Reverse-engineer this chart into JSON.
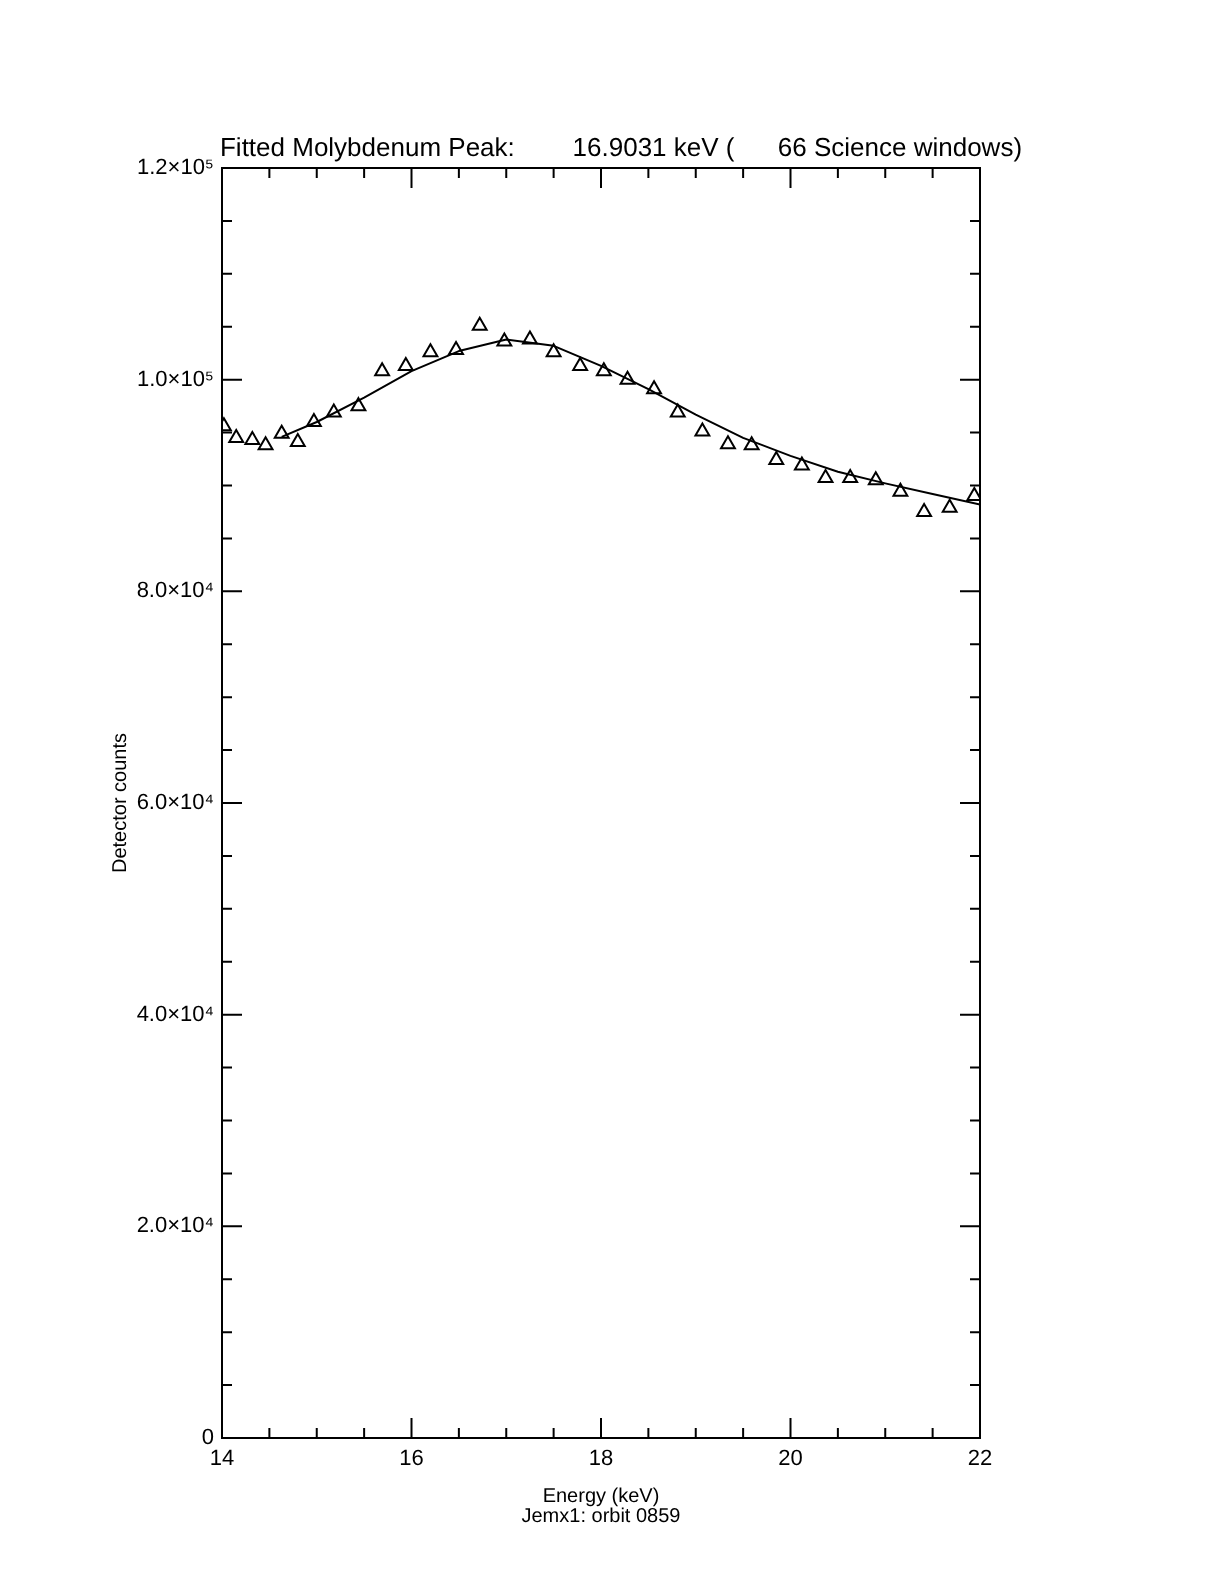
{
  "chart_data": {
    "type": "scatter",
    "title": "Fitted Molybdenum Peak:        16.9031 keV (      66 Science windows)",
    "xlabel": "Energy (keV)",
    "ylabel": "Detector counts",
    "annotations": [
      "Jemx1: orbit 0859"
    ],
    "xlim": [
      14,
      22
    ],
    "xticks": [
      14,
      {
        "value": 14.5,
        "label": null
      },
      {
        "value": 15,
        "label": null
      },
      {
        "value": 15.5,
        "label": null
      },
      16,
      {
        "value": 16.5,
        "label": null
      },
      {
        "value": 17,
        "label": null
      },
      {
        "value": 17.5,
        "label": null
      },
      18,
      {
        "value": 18.5,
        "label": null
      },
      {
        "value": 19,
        "label": null
      },
      {
        "value": 19.5,
        "label": null
      },
      20,
      {
        "value": 20.5,
        "label": null
      },
      {
        "value": 21,
        "label": null
      },
      {
        "value": 21.5,
        "label": null
      },
      22
    ],
    "ylim": [
      0,
      120000
    ],
    "yticks": [
      0,
      {
        "value": 5000,
        "label": null
      },
      {
        "value": 10000,
        "label": null
      },
      {
        "value": 15000,
        "label": null
      },
      {
        "value": 20000,
        "label": "2.0×10⁴"
      },
      {
        "value": 25000,
        "label": null
      },
      {
        "value": 30000,
        "label": null
      },
      {
        "value": 35000,
        "label": null
      },
      {
        "value": 40000,
        "label": "4.0×10⁴"
      },
      {
        "value": 45000,
        "label": null
      },
      {
        "value": 50000,
        "label": null
      },
      {
        "value": 55000,
        "label": null
      },
      {
        "value": 60000,
        "label": "6.0×10⁴"
      },
      {
        "value": 65000,
        "label": null
      },
      {
        "value": 70000,
        "label": null
      },
      {
        "value": 75000,
        "label": null
      },
      {
        "value": 80000,
        "label": "8.0×10⁴"
      },
      {
        "value": 85000,
        "label": null
      },
      {
        "value": 90000,
        "label": null
      },
      {
        "value": 95000,
        "label": null
      },
      {
        "value": 100000,
        "label": "1.0×10⁵"
      },
      {
        "value": 105000,
        "label": null
      },
      {
        "value": 110000,
        "label": null
      },
      {
        "value": 115000,
        "label": null
      },
      {
        "value": 120000,
        "label": "1.2×10⁵"
      }
    ],
    "grid": false,
    "legend": false,
    "series": [
      {
        "color": "#000000",
        "marker": "triangle",
        "x": [
          14.02,
          14.15,
          14.32,
          14.46,
          14.63,
          14.8,
          14.97,
          15.18,
          15.44,
          15.69,
          15.94,
          16.2,
          16.47,
          16.72,
          16.98,
          17.25,
          17.5,
          17.78,
          18.03,
          18.28,
          18.56,
          18.81,
          19.07,
          19.34,
          19.59,
          19.85,
          20.12,
          20.37,
          20.63,
          20.9,
          21.16,
          21.41,
          21.68,
          21.94
        ],
        "values": [
          95600,
          94500,
          94300,
          93800,
          94900,
          94100,
          96000,
          96900,
          97500,
          100800,
          101300,
          102600,
          102800,
          105100,
          103600,
          103800,
          102600,
          101300,
          100800,
          100000,
          99100,
          96900,
          95100,
          93900,
          93800,
          92400,
          91900,
          90700,
          90700,
          90500,
          89400,
          87500,
          87900,
          89000
        ]
      },
      {
        "type": "line",
        "color": "#000000",
        "marker": "none",
        "x": [
          14.63,
          15.0,
          15.5,
          16.0,
          16.5,
          17.0,
          17.5,
          18.0,
          18.5,
          19.0,
          19.5,
          20.0,
          20.5,
          21.0,
          21.5,
          22.0
        ],
        "values": [
          94600,
          96000,
          98300,
          100800,
          102700,
          103800,
          103200,
          101300,
          99100,
          96700,
          94500,
          92800,
          91300,
          90200,
          89200,
          88200
        ]
      }
    ]
  }
}
